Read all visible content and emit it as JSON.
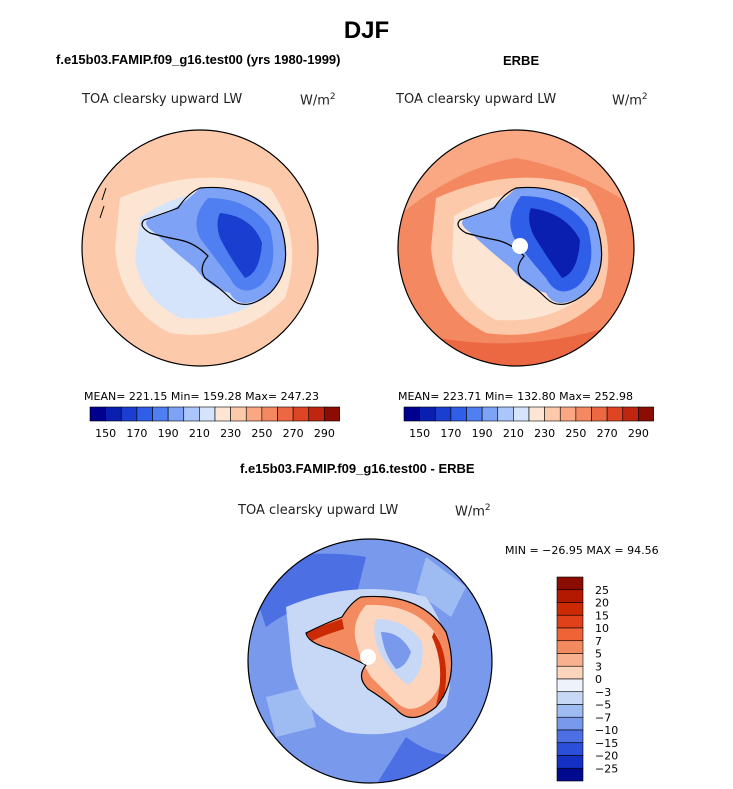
{
  "figure": {
    "title": "DJF",
    "panel_titles": [
      "f.e15b03.FAMIP.f09_g16.test00 (yrs 1980-1999)",
      "ERBE",
      "f.e15b03.FAMIP.f09_g16.test00 - ERBE"
    ],
    "variable": "TOA clearsky upward LW",
    "units": "W/m",
    "units_exp": "2",
    "panel1_stats": "MEAN= 221.15   Min= 159.28   Max= 247.23",
    "panel2_stats": "MEAN= 223.71   Min= 132.80   Max= 252.98",
    "diff_stats": "MIN = −26.95 MAX =   94.56"
  },
  "chart_data": [
    {
      "type": "heatmap",
      "projection": "south polar stereographic",
      "title": "f.e15b03.FAMIP.f09_g16.test00 (yrs 1980-1999)",
      "variable": "TOA clearsky upward LW",
      "units": "W/m^2",
      "mean": 221.15,
      "min": 159.28,
      "max": 247.23,
      "colorbar_orientation": "horizontal",
      "colorbar_tick_labels": [
        "150",
        "170",
        "190",
        "210",
        "230",
        "250",
        "270",
        "290"
      ],
      "colors": [
        "#00008f",
        "#0a1fb0",
        "#1a3fd0",
        "#2f5ee8",
        "#4f7ff0",
        "#7ea2f5",
        "#aac6fa",
        "#d6e4fb",
        "#fde5d4",
        "#fcc9aa",
        "#f9a883",
        "#f48861",
        "#ec6843",
        "#dd4525",
        "#c02510",
        "#8b0c00"
      ]
    },
    {
      "type": "heatmap",
      "projection": "south polar stereographic",
      "title": "ERBE",
      "variable": "TOA clearsky upward LW",
      "units": "W/m^2",
      "mean": 223.71,
      "min": 132.8,
      "max": 252.98,
      "colorbar_orientation": "horizontal",
      "colorbar_tick_labels": [
        "150",
        "170",
        "190",
        "210",
        "230",
        "250",
        "270",
        "290"
      ],
      "colors": [
        "#00008f",
        "#0a1fb0",
        "#1a3fd0",
        "#2f5ee8",
        "#4f7ff0",
        "#7ea2f5",
        "#aac6fa",
        "#d6e4fb",
        "#fde5d4",
        "#fcc9aa",
        "#f9a883",
        "#f48861",
        "#ec6843",
        "#dd4525",
        "#c02510",
        "#8b0c00"
      ]
    },
    {
      "type": "heatmap",
      "projection": "south polar stereographic",
      "title": "f.e15b03.FAMIP.f09_g16.test00 - ERBE",
      "variable": "TOA clearsky upward LW",
      "units": "W/m^2",
      "min": -26.95,
      "max": 94.56,
      "colorbar_orientation": "vertical",
      "colorbar_tick_labels": [
        "25",
        "20",
        "15",
        "10",
        "7",
        "5",
        "3",
        "0",
        "−3",
        "−5",
        "−7",
        "−10",
        "−15",
        "−20",
        "−25"
      ],
      "colors": [
        "#8b0c00",
        "#b31800",
        "#cc2a05",
        "#e0401a",
        "#ee6437",
        "#f48a60",
        "#f9b08e",
        "#fcd5bc",
        "#eef2fb",
        "#c7d8f7",
        "#9fbcf2",
        "#7899ec",
        "#4d6fe4",
        "#2b4fd9",
        "#1530c4",
        "#000a8f"
      ]
    }
  ]
}
